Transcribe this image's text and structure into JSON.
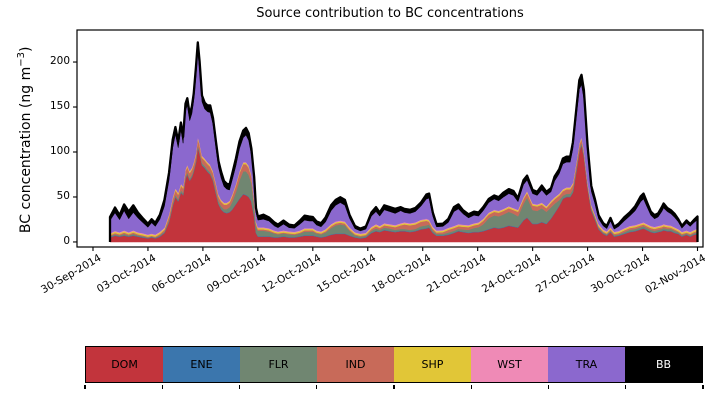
{
  "figure": {
    "title": "Source contribution to BC concentrations",
    "ylabel_pre": "BC concentration (ng m",
    "ylabel_sup": "−3",
    "ylabel_post": ")"
  },
  "chart_data": {
    "type": "area",
    "subtype": "stacked-area-timeseries",
    "title": "Source contribution to BC concentrations",
    "ylabel": "BC concentration (ng m^-3)",
    "grid": false,
    "legend_position": "bottom-strip",
    "x_unit": "days since 30-Sep-2014 00:00",
    "xlim": [
      -0.873,
      33.3
    ],
    "ylim": [
      -5.6,
      235.6
    ],
    "yticks": [
      0,
      50,
      100,
      150,
      200
    ],
    "ytick_labels": [
      "0",
      "50",
      "100",
      "150",
      "200"
    ],
    "xtick_days": [
      0,
      3,
      6,
      9,
      12,
      15,
      18,
      21,
      24,
      27,
      30,
      33
    ],
    "xtick_labels": [
      "30-Sep-2014",
      "03-Oct-2014",
      "06-Oct-2014",
      "09-Oct-2014",
      "12-Oct-2014",
      "15-Oct-2014",
      "18-Oct-2014",
      "21-Oct-2014",
      "24-Oct-2014",
      "27-Oct-2014",
      "30-Oct-2014",
      "02-Nov-2014"
    ],
    "stack_order_bottom_to_top": [
      "DOM",
      "ENE",
      "FLR",
      "IND",
      "SHP",
      "WST",
      "TRA",
      "BB"
    ],
    "total_outline_color": "#000000",
    "x": [
      0.93,
      1.2,
      1.45,
      1.7,
      1.95,
      2.2,
      2.45,
      2.7,
      3.0,
      3.2,
      3.4,
      3.65,
      3.9,
      4.15,
      4.35,
      4.5,
      4.65,
      4.8,
      4.92,
      5.05,
      5.15,
      5.28,
      5.4,
      5.5,
      5.62,
      5.72,
      5.82,
      5.95,
      6.1,
      6.25,
      6.4,
      6.55,
      6.7,
      6.85,
      7.0,
      7.15,
      7.3,
      7.45,
      7.6,
      7.8,
      8.0,
      8.2,
      8.35,
      8.5,
      8.65,
      8.8,
      8.9,
      9.0,
      9.3,
      9.6,
      9.9,
      10.1,
      10.4,
      10.7,
      11.0,
      11.3,
      11.55,
      11.8,
      12.0,
      12.2,
      12.45,
      12.7,
      13.0,
      13.25,
      13.5,
      13.75,
      14.0,
      14.3,
      14.6,
      14.9,
      15.2,
      15.45,
      15.65,
      15.9,
      16.2,
      16.5,
      16.8,
      17.0,
      17.3,
      17.6,
      17.9,
      18.2,
      18.35,
      18.55,
      18.75,
      19.1,
      19.4,
      19.7,
      19.95,
      20.2,
      20.5,
      20.8,
      21.05,
      21.3,
      21.6,
      21.9,
      22.15,
      22.4,
      22.7,
      22.95,
      23.2,
      23.5,
      23.7,
      24.0,
      24.25,
      24.5,
      24.75,
      25.0,
      25.2,
      25.45,
      25.65,
      25.85,
      26.05,
      26.2,
      26.4,
      26.55,
      26.67,
      26.8,
      27.0,
      27.2,
      27.4,
      27.6,
      27.85,
      28.05,
      28.25,
      28.45,
      28.7,
      29.0,
      29.3,
      29.6,
      29.9,
      30.05,
      30.25,
      30.45,
      30.65,
      30.85,
      31.05,
      31.15,
      31.35,
      31.55,
      31.75,
      31.95,
      32.15,
      32.4,
      32.6,
      32.8,
      33.0
    ],
    "series": [
      {
        "name": "DOM",
        "color": "#c2343c",
        "values": [
          5,
          7,
          6,
          7,
          6,
          7,
          6,
          5,
          4,
          5,
          4,
          6,
          10,
          22,
          40,
          50,
          45,
          55,
          52,
          70,
          75,
          68,
          72,
          78,
          88,
          105,
          98,
          85,
          82,
          78,
          75,
          68,
          55,
          42,
          36,
          33,
          32,
          33,
          36,
          42,
          48,
          53,
          52,
          50,
          45,
          28,
          10,
          6,
          6,
          6,
          5,
          5,
          6,
          5,
          5,
          6,
          7,
          7,
          7,
          6,
          5,
          6,
          8,
          9,
          9,
          9,
          7,
          5,
          4,
          5,
          10,
          12,
          11,
          13,
          12,
          11,
          12,
          12,
          11,
          12,
          14,
          15,
          16,
          10,
          7,
          7,
          8,
          10,
          12,
          11,
          10,
          11,
          11,
          12,
          14,
          16,
          15,
          16,
          18,
          17,
          16,
          24,
          27,
          20,
          20,
          22,
          20,
          26,
          32,
          40,
          48,
          50,
          50,
          55,
          80,
          100,
          108,
          95,
          60,
          35,
          25,
          14,
          9,
          7,
          11,
          6,
          7,
          9,
          11,
          12,
          14,
          15,
          13,
          11,
          10,
          11,
          12,
          13,
          12,
          12,
          10,
          9,
          6,
          8,
          6,
          8,
          9
        ]
      },
      {
        "name": "ENE",
        "color": "#3b76ad",
        "constant": 0.5
      },
      {
        "name": "FLR",
        "color": "#708671",
        "values": [
          1,
          1,
          1,
          1.5,
          1,
          1.5,
          1,
          1,
          0.5,
          0.5,
          0.5,
          1,
          1,
          2,
          2,
          2,
          2,
          2,
          2,
          2,
          2,
          2,
          2,
          2,
          2,
          2,
          2,
          2,
          2,
          2,
          2,
          2,
          3,
          3,
          3,
          3,
          4,
          5,
          8,
          13,
          20,
          25,
          26,
          24,
          20,
          12,
          7,
          6,
          6,
          5,
          4,
          3,
          3,
          3,
          2.5,
          3,
          4,
          4,
          4,
          3,
          3,
          4,
          7,
          9,
          10,
          9,
          5,
          2,
          1.5,
          1.5,
          2,
          2.5,
          2,
          2.5,
          2.5,
          2,
          2,
          2,
          2,
          2,
          3,
          3,
          3,
          2,
          1.5,
          1.5,
          2,
          2,
          2,
          2.5,
          3,
          4,
          5,
          7,
          12,
          13,
          13,
          14,
          15,
          14,
          12,
          18,
          22,
          15,
          14,
          15,
          13,
          12,
          10,
          6,
          3,
          3,
          3,
          3,
          3,
          2,
          2,
          2,
          2,
          2,
          2,
          1.5,
          1,
          1,
          1,
          1,
          1,
          1.5,
          2,
          2,
          2,
          2,
          2,
          2,
          2,
          2,
          2,
          2,
          2,
          2,
          2,
          1.5,
          1,
          1,
          1,
          1,
          1.5
        ]
      },
      {
        "name": "IND",
        "color": "#c86a59",
        "values": [
          1,
          1.5,
          1,
          1.5,
          1,
          1.5,
          1,
          1,
          1,
          1,
          1,
          1.5,
          2,
          4,
          5,
          5,
          5,
          5,
          5,
          6,
          6,
          6,
          6,
          6,
          6,
          7,
          7,
          6,
          6,
          6,
          6,
          6,
          6,
          5,
          5,
          5,
          5,
          5,
          6,
          7,
          8,
          8,
          8,
          8,
          7,
          5,
          3,
          1.5,
          1.5,
          1.5,
          1,
          1,
          1,
          1,
          1,
          1,
          1.5,
          1.5,
          1.5,
          1,
          1,
          1.5,
          2,
          2,
          2,
          2,
          1.5,
          1,
          1,
          1,
          2,
          2.5,
          2,
          2.5,
          2.5,
          3,
          4,
          5,
          5,
          5,
          5,
          5,
          3,
          2,
          1.5,
          2,
          3,
          3,
          3,
          3,
          3,
          3,
          3,
          4,
          4,
          4,
          4,
          4,
          4,
          4,
          5,
          5,
          5,
          5,
          5,
          4,
          4,
          5,
          5,
          5,
          5,
          5,
          5,
          5,
          5,
          5,
          4,
          3,
          2,
          1.5,
          1,
          1.5,
          1,
          1,
          1.5,
          1.5,
          1.5,
          2,
          2,
          2,
          2,
          2,
          2,
          2,
          2,
          2,
          2,
          2,
          2,
          1.5,
          1.5,
          1,
          1.5,
          1,
          1.5,
          1.5
        ]
      },
      {
        "name": "SHP",
        "color": "#e1c637",
        "constant": 1.5
      },
      {
        "name": "WST",
        "color": "#ef8ab6",
        "constant": 0.8
      },
      {
        "name": "TRA",
        "color": "#8b68ce",
        "values": [
          14,
          20,
          14,
          22,
          15,
          20,
          16,
          12,
          8,
          12,
          9,
          14,
          24,
          38,
          55,
          60,
          50,
          60,
          48,
          65,
          66,
          56,
          60,
          68,
          85,
          95,
          82,
          60,
          55,
          56,
          58,
          52,
          40,
          30,
          24,
          18,
          15,
          12,
          16,
          20,
          25,
          27,
          30,
          28,
          22,
          18,
          10,
          8,
          9,
          8,
          5,
          4,
          7,
          4,
          4,
          7,
          9,
          8,
          8,
          6,
          5,
          8,
          15,
          18,
          20,
          18,
          10,
          4,
          3,
          4,
          12,
          14,
          11,
          15,
          14,
          13,
          14,
          11,
          11,
          12,
          15,
          22,
          24,
          12,
          4,
          4,
          6,
          16,
          17,
          12,
          8,
          9,
          7,
          9,
          11,
          12,
          11,
          13,
          14,
          14,
          9,
          14,
          12,
          11,
          10,
          14,
          12,
          10,
          18,
          22,
          28,
          28,
          28,
          38,
          52,
          60,
          58,
          56,
          32,
          15,
          12,
          6,
          4,
          3,
          7,
          3,
          5,
          8,
          11,
          16,
          24,
          26,
          19,
          12,
          9,
          10,
          15,
          18,
          15,
          13,
          11,
          8,
          4,
          8,
          6,
          8,
          10
        ]
      },
      {
        "name": "BB",
        "color": "#000000",
        "values": [
          4,
          6,
          5,
          7,
          8,
          8,
          6,
          5,
          4,
          4,
          4,
          5,
          7,
          8,
          9,
          8,
          7,
          8,
          7,
          8,
          8,
          7,
          8,
          8,
          10,
          10,
          9,
          7,
          7,
          7,
          8,
          7,
          7,
          7,
          7,
          6,
          6,
          6,
          7,
          8,
          8,
          8,
          8,
          8,
          7,
          6,
          5,
          4,
          5,
          4,
          4,
          3.5,
          4,
          3.5,
          3,
          4,
          5,
          5,
          4.5,
          4,
          4,
          5,
          6,
          6,
          6,
          6,
          4,
          3,
          2.5,
          3,
          4,
          5,
          4,
          5,
          5,
          5,
          4,
          4,
          4,
          4,
          4,
          5,
          5,
          4,
          3,
          3,
          4,
          5,
          5,
          4,
          4,
          4,
          4,
          4,
          4,
          4,
          4,
          5,
          5,
          5,
          4,
          5,
          5,
          4,
          4,
          5,
          4,
          4,
          5,
          5,
          6,
          6,
          6,
          7,
          8,
          10,
          11,
          10,
          8,
          6,
          5,
          4,
          3,
          3,
          3.5,
          2.5,
          3,
          4,
          4,
          5,
          6,
          6,
          5,
          4,
          4,
          4,
          5,
          5,
          4,
          4,
          4,
          3,
          2.5,
          3,
          2.5,
          3,
          3.5
        ]
      }
    ],
    "legend": [
      {
        "label": "DOM",
        "color": "#c2343c",
        "text_color": "#000000"
      },
      {
        "label": "ENE",
        "color": "#3b76ad",
        "text_color": "#000000"
      },
      {
        "label": "FLR",
        "color": "#708671",
        "text_color": "#000000"
      },
      {
        "label": "IND",
        "color": "#c86a59",
        "text_color": "#000000"
      },
      {
        "label": "SHP",
        "color": "#e1c637",
        "text_color": "#000000"
      },
      {
        "label": "WST",
        "color": "#ef8ab6",
        "text_color": "#000000"
      },
      {
        "label": "TRA",
        "color": "#8b68ce",
        "text_color": "#000000"
      },
      {
        "label": "BB",
        "color": "#000000",
        "text_color": "#ffffff"
      }
    ]
  }
}
